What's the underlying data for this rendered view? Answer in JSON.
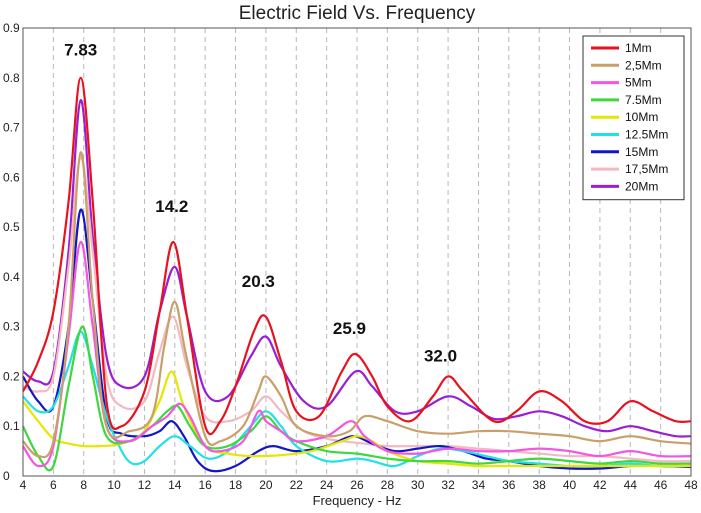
{
  "chart_data": {
    "type": "line",
    "title": "Electric Field Vs. Frequency",
    "xlabel": "Frequency - Hz",
    "ylabel": "",
    "xlim": [
      4,
      48
    ],
    "ylim": [
      0,
      0.9
    ],
    "x_ticks": [
      4,
      6,
      8,
      10,
      12,
      14,
      16,
      18,
      20,
      22,
      24,
      26,
      28,
      30,
      32,
      34,
      36,
      38,
      40,
      42,
      44,
      46,
      48
    ],
    "y_ticks": [
      0,
      0.1,
      0.2,
      0.3,
      0.4,
      0.5,
      0.6,
      0.7,
      0.8,
      0.9
    ],
    "y_tick_labels": [
      "0",
      "0.1",
      "0.2",
      "0.3",
      "0.4",
      "0.5",
      "0.6",
      "0.7",
      "0.8",
      "0.9"
    ],
    "grid": "vertical dashed",
    "legend_position": "top-right",
    "annotations": [
      {
        "text": "7.83",
        "x": 7.8,
        "y": 0.845
      },
      {
        "text": "14.2",
        "x": 13.8,
        "y": 0.53
      },
      {
        "text": "20.3",
        "x": 19.5,
        "y": 0.38
      },
      {
        "text": "25.9",
        "x": 25.5,
        "y": 0.285
      },
      {
        "text": "32.0",
        "x": 31.5,
        "y": 0.23
      }
    ],
    "series": [
      {
        "name": "1Mm",
        "color": "#e8121e",
        "points": [
          [
            4,
            0.17
          ],
          [
            5,
            0.23
          ],
          [
            6,
            0.33
          ],
          [
            7,
            0.55
          ],
          [
            7.8,
            0.8
          ],
          [
            8.6,
            0.55
          ],
          [
            9.5,
            0.15
          ],
          [
            10.5,
            0.1
          ],
          [
            12,
            0.17
          ],
          [
            13,
            0.33
          ],
          [
            13.9,
            0.47
          ],
          [
            14.8,
            0.32
          ],
          [
            16,
            0.1
          ],
          [
            17,
            0.11
          ],
          [
            18,
            0.18
          ],
          [
            19.2,
            0.29
          ],
          [
            20,
            0.32
          ],
          [
            21,
            0.23
          ],
          [
            22,
            0.13
          ],
          [
            23.5,
            0.12
          ],
          [
            25,
            0.21
          ],
          [
            25.9,
            0.245
          ],
          [
            27,
            0.2
          ],
          [
            28,
            0.14
          ],
          [
            29.5,
            0.11
          ],
          [
            31,
            0.16
          ],
          [
            32,
            0.2
          ],
          [
            33,
            0.17
          ],
          [
            35,
            0.11
          ],
          [
            36.5,
            0.13
          ],
          [
            38,
            0.17
          ],
          [
            39.5,
            0.15
          ],
          [
            41,
            0.11
          ],
          [
            42.5,
            0.11
          ],
          [
            44,
            0.15
          ],
          [
            45.5,
            0.13
          ],
          [
            47,
            0.11
          ],
          [
            48,
            0.11
          ]
        ]
      },
      {
        "name": "2,5Mm",
        "color": "#c9a06a",
        "points": [
          [
            4,
            0.07
          ],
          [
            5,
            0.04
          ],
          [
            6,
            0.07
          ],
          [
            7,
            0.3
          ],
          [
            7.8,
            0.65
          ],
          [
            8.6,
            0.35
          ],
          [
            9.5,
            0.1
          ],
          [
            11,
            0.09
          ],
          [
            12.5,
            0.12
          ],
          [
            13.3,
            0.26
          ],
          [
            14,
            0.35
          ],
          [
            14.7,
            0.25
          ],
          [
            16,
            0.08
          ],
          [
            17,
            0.07
          ],
          [
            18.5,
            0.1
          ],
          [
            19.5,
            0.17
          ],
          [
            20,
            0.2
          ],
          [
            21,
            0.16
          ],
          [
            22,
            0.1
          ],
          [
            24,
            0.08
          ],
          [
            25.5,
            0.09
          ],
          [
            26.5,
            0.12
          ],
          [
            28,
            0.11
          ],
          [
            30,
            0.09
          ],
          [
            32,
            0.085
          ],
          [
            34,
            0.09
          ],
          [
            36,
            0.09
          ],
          [
            38,
            0.085
          ],
          [
            40,
            0.08
          ],
          [
            42,
            0.07
          ],
          [
            44,
            0.08
          ],
          [
            46,
            0.07
          ],
          [
            48,
            0.065
          ]
        ]
      },
      {
        "name": "5Mm",
        "color": "#f256e3",
        "points": [
          [
            4,
            0.06
          ],
          [
            5,
            0.02
          ],
          [
            6,
            0.06
          ],
          [
            7,
            0.28
          ],
          [
            7.8,
            0.47
          ],
          [
            8.6,
            0.3
          ],
          [
            9.5,
            0.1
          ],
          [
            11,
            0.07
          ],
          [
            12.5,
            0.1
          ],
          [
            13.5,
            0.12
          ],
          [
            14.3,
            0.145
          ],
          [
            15,
            0.12
          ],
          [
            16,
            0.06
          ],
          [
            17,
            0.05
          ],
          [
            18.5,
            0.07
          ],
          [
            19.5,
            0.13
          ],
          [
            20,
            0.11
          ],
          [
            21,
            0.09
          ],
          [
            22,
            0.07
          ],
          [
            24,
            0.08
          ],
          [
            25.6,
            0.11
          ],
          [
            26.5,
            0.08
          ],
          [
            28,
            0.05
          ],
          [
            30,
            0.045
          ],
          [
            32,
            0.055
          ],
          [
            34,
            0.05
          ],
          [
            36,
            0.05
          ],
          [
            38,
            0.055
          ],
          [
            40,
            0.05
          ],
          [
            42,
            0.04
          ],
          [
            44,
            0.05
          ],
          [
            46,
            0.04
          ],
          [
            48,
            0.04
          ]
        ]
      },
      {
        "name": "7.5Mm",
        "color": "#3ed83e",
        "points": [
          [
            4,
            0.1
          ],
          [
            5,
            0.04
          ],
          [
            6,
            0.02
          ],
          [
            7,
            0.18
          ],
          [
            7.9,
            0.3
          ],
          [
            8.6,
            0.2
          ],
          [
            9.5,
            0.08
          ],
          [
            11,
            0.07
          ],
          [
            12.5,
            0.1
          ],
          [
            13.5,
            0.13
          ],
          [
            14.2,
            0.14
          ],
          [
            15,
            0.1
          ],
          [
            16,
            0.06
          ],
          [
            17.5,
            0.06
          ],
          [
            19,
            0.09
          ],
          [
            20,
            0.12
          ],
          [
            21,
            0.09
          ],
          [
            22,
            0.07
          ],
          [
            24,
            0.05
          ],
          [
            26,
            0.045
          ],
          [
            28,
            0.035
          ],
          [
            30,
            0.03
          ],
          [
            32,
            0.03
          ],
          [
            34,
            0.025
          ],
          [
            36,
            0.03
          ],
          [
            38,
            0.035
          ],
          [
            40,
            0.03
          ],
          [
            42,
            0.025
          ],
          [
            44,
            0.03
          ],
          [
            46,
            0.025
          ],
          [
            48,
            0.025
          ]
        ]
      },
      {
        "name": "10Mm",
        "color": "#e6e600",
        "points": [
          [
            4,
            0.15
          ],
          [
            5,
            0.11
          ],
          [
            6,
            0.075
          ],
          [
            7,
            0.065
          ],
          [
            8,
            0.06
          ],
          [
            9,
            0.06
          ],
          [
            10,
            0.062
          ],
          [
            11,
            0.07
          ],
          [
            12,
            0.09
          ],
          [
            13,
            0.15
          ],
          [
            13.8,
            0.21
          ],
          [
            14.6,
            0.14
          ],
          [
            16,
            0.06
          ],
          [
            17.5,
            0.045
          ],
          [
            19,
            0.04
          ],
          [
            21,
            0.042
          ],
          [
            23,
            0.05
          ],
          [
            25,
            0.07
          ],
          [
            26,
            0.08
          ],
          [
            27,
            0.07
          ],
          [
            28,
            0.05
          ],
          [
            30,
            0.03
          ],
          [
            32,
            0.025
          ],
          [
            34,
            0.02
          ],
          [
            36,
            0.02
          ],
          [
            38,
            0.02
          ],
          [
            40,
            0.02
          ],
          [
            42,
            0.02
          ],
          [
            44,
            0.02
          ],
          [
            46,
            0.02
          ],
          [
            48,
            0.02
          ]
        ]
      },
      {
        "name": "12.5Mm",
        "color": "#21e1e6",
        "points": [
          [
            4,
            0.16
          ],
          [
            5,
            0.13
          ],
          [
            6,
            0.14
          ],
          [
            7,
            0.22
          ],
          [
            7.8,
            0.29
          ],
          [
            8.6,
            0.22
          ],
          [
            9.5,
            0.12
          ],
          [
            10.5,
            0.05
          ],
          [
            11.2,
            0.025
          ],
          [
            12,
            0.03
          ],
          [
            13,
            0.06
          ],
          [
            14,
            0.08
          ],
          [
            15,
            0.06
          ],
          [
            16.2,
            0.035
          ],
          [
            17.5,
            0.05
          ],
          [
            19,
            0.1
          ],
          [
            20,
            0.13
          ],
          [
            21,
            0.1
          ],
          [
            22,
            0.06
          ],
          [
            24,
            0.03
          ],
          [
            26,
            0.035
          ],
          [
            27,
            0.03
          ],
          [
            28.5,
            0.02
          ],
          [
            30,
            0.04
          ],
          [
            31.5,
            0.055
          ],
          [
            33,
            0.05
          ],
          [
            34.5,
            0.04
          ],
          [
            36,
            0.03
          ],
          [
            38,
            0.025
          ],
          [
            40,
            0.02
          ],
          [
            42,
            0.02
          ],
          [
            44,
            0.025
          ],
          [
            46,
            0.02
          ],
          [
            48,
            0.02
          ]
        ]
      },
      {
        "name": "15Mm",
        "color": "#1316c4",
        "points": [
          [
            4,
            0.2
          ],
          [
            5,
            0.15
          ],
          [
            6,
            0.14
          ],
          [
            7,
            0.3
          ],
          [
            7.8,
            0.535
          ],
          [
            8.6,
            0.35
          ],
          [
            9.5,
            0.12
          ],
          [
            10.5,
            0.085
          ],
          [
            12,
            0.08
          ],
          [
            13,
            0.09
          ],
          [
            13.8,
            0.11
          ],
          [
            14.6,
            0.08
          ],
          [
            15.5,
            0.03
          ],
          [
            16.5,
            0.01
          ],
          [
            18,
            0.02
          ],
          [
            19.5,
            0.05
          ],
          [
            20.5,
            0.06
          ],
          [
            22,
            0.05
          ],
          [
            24,
            0.06
          ],
          [
            25.7,
            0.08
          ],
          [
            27,
            0.065
          ],
          [
            28.5,
            0.05
          ],
          [
            30,
            0.055
          ],
          [
            31.5,
            0.06
          ],
          [
            33,
            0.05
          ],
          [
            34.5,
            0.035
          ],
          [
            36,
            0.03
          ],
          [
            38,
            0.02
          ],
          [
            40,
            0.015
          ],
          [
            42,
            0.015
          ],
          [
            44,
            0.02
          ],
          [
            46,
            0.02
          ],
          [
            48,
            0.018
          ]
        ]
      },
      {
        "name": "17,5Mm",
        "color": "#f4b8c1",
        "points": [
          [
            4,
            0.18
          ],
          [
            5,
            0.17
          ],
          [
            6,
            0.2
          ],
          [
            7,
            0.42
          ],
          [
            7.8,
            0.64
          ],
          [
            8.6,
            0.45
          ],
          [
            9.5,
            0.2
          ],
          [
            10.5,
            0.14
          ],
          [
            12,
            0.15
          ],
          [
            13,
            0.25
          ],
          [
            13.9,
            0.32
          ],
          [
            14.8,
            0.22
          ],
          [
            16,
            0.12
          ],
          [
            17.5,
            0.11
          ],
          [
            19,
            0.13
          ],
          [
            20,
            0.16
          ],
          [
            21,
            0.13
          ],
          [
            22.5,
            0.09
          ],
          [
            24,
            0.075
          ],
          [
            25,
            0.07
          ],
          [
            26.5,
            0.065
          ],
          [
            28,
            0.06
          ],
          [
            30,
            0.06
          ],
          [
            32,
            0.06
          ],
          [
            34,
            0.055
          ],
          [
            36,
            0.05
          ],
          [
            38,
            0.045
          ],
          [
            40,
            0.04
          ],
          [
            42,
            0.04
          ],
          [
            44,
            0.035
          ],
          [
            46,
            0.03
          ],
          [
            48,
            0.03
          ]
        ]
      },
      {
        "name": "20Mm",
        "color": "#9a1ed4",
        "points": [
          [
            4,
            0.21
          ],
          [
            5,
            0.19
          ],
          [
            6,
            0.21
          ],
          [
            7,
            0.45
          ],
          [
            7.8,
            0.755
          ],
          [
            8.6,
            0.48
          ],
          [
            9.5,
            0.24
          ],
          [
            10.5,
            0.18
          ],
          [
            12,
            0.2
          ],
          [
            13,
            0.33
          ],
          [
            14,
            0.42
          ],
          [
            14.8,
            0.32
          ],
          [
            16,
            0.17
          ],
          [
            17.5,
            0.16
          ],
          [
            19,
            0.24
          ],
          [
            20,
            0.28
          ],
          [
            21,
            0.22
          ],
          [
            22.5,
            0.15
          ],
          [
            24,
            0.14
          ],
          [
            25.9,
            0.21
          ],
          [
            27,
            0.18
          ],
          [
            28.5,
            0.13
          ],
          [
            30,
            0.13
          ],
          [
            32,
            0.16
          ],
          [
            33.5,
            0.14
          ],
          [
            35,
            0.115
          ],
          [
            36.5,
            0.12
          ],
          [
            38,
            0.13
          ],
          [
            39.5,
            0.12
          ],
          [
            41,
            0.1
          ],
          [
            42.5,
            0.09
          ],
          [
            44,
            0.1
          ],
          [
            45.5,
            0.09
          ],
          [
            47,
            0.08
          ],
          [
            48,
            0.08
          ]
        ]
      }
    ]
  }
}
